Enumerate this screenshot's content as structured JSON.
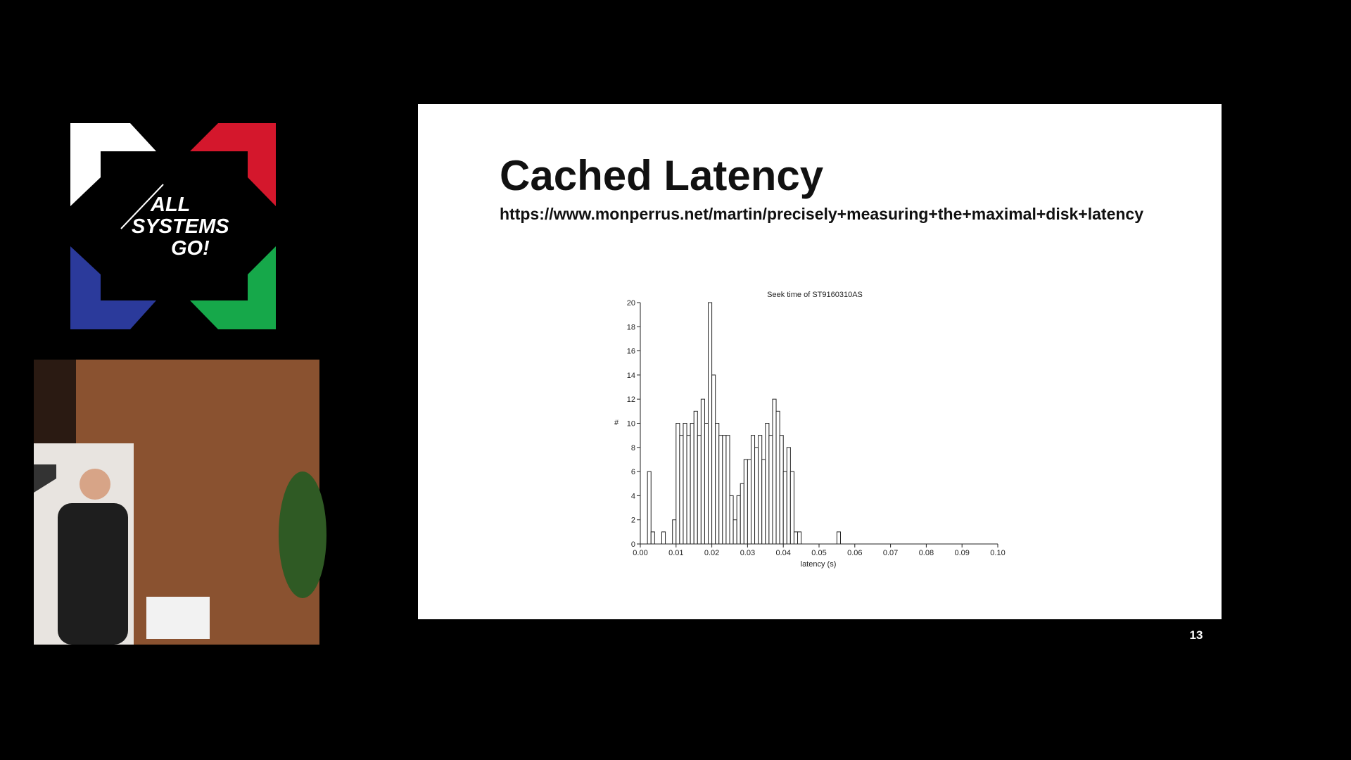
{
  "logo": {
    "lines": [
      "ALL",
      "SYSTEMS",
      "GO!"
    ]
  },
  "slide": {
    "title": "Cached Latency",
    "url": "https://www.monperrus.net/martin/precisely+measuring+the+maximal+disk+latency",
    "page_number": "13"
  },
  "chart_data": {
    "type": "histogram",
    "title": "Seek time of ST9160310AS",
    "x_label": "latency (s)",
    "y_label": "#",
    "bins": [
      0,
      0.001,
      0.002,
      0.003,
      0.004,
      0.005,
      0.006,
      0.007,
      0.008,
      0.009,
      0.01,
      0.011,
      0.012,
      0.013,
      0.014,
      0.015,
      0.016,
      0.017,
      0.018,
      0.019,
      0.02,
      0.021,
      0.022,
      0.023,
      0.024,
      0.025,
      0.026,
      0.027,
      0.028,
      0.029,
      0.03,
      0.031,
      0.032,
      0.033,
      0.034,
      0.035,
      0.036,
      0.037,
      0.038,
      0.039,
      0.04,
      0.041,
      0.042,
      0.043,
      0.044,
      0.045,
      0.046,
      0.047,
      0.048,
      0.049,
      0.05,
      0.051,
      0.052,
      0.053,
      0.054,
      0.055,
      0.056
    ],
    "values": [
      0,
      0,
      6,
      1,
      0,
      0,
      1,
      0,
      0,
      2,
      10,
      9,
      10,
      9,
      10,
      11,
      9,
      12,
      10,
      20,
      14,
      10,
      9,
      9,
      9,
      4,
      2,
      4,
      5,
      7,
      7,
      9,
      8,
      9,
      7,
      10,
      9,
      12,
      11,
      9,
      6,
      8,
      6,
      1,
      1,
      0,
      0,
      0,
      0,
      0,
      0,
      0,
      0,
      0,
      0,
      1
    ],
    "color": "#ffffff",
    "xlim": [
      0,
      0.1
    ],
    "ylim": [
      0,
      20
    ],
    "xticks": [
      {
        "value": 0,
        "label": "0.00"
      },
      {
        "value": 0.01,
        "label": "0.01"
      },
      {
        "value": 0.02,
        "label": "0.02"
      },
      {
        "value": 0.03,
        "label": "0.03"
      },
      {
        "value": 0.04,
        "label": "0.04"
      },
      {
        "value": 0.05,
        "label": "0.05"
      },
      {
        "value": 0.06,
        "label": "0.06"
      },
      {
        "value": 0.07,
        "label": "0.07"
      },
      {
        "value": 0.08,
        "label": "0.08"
      },
      {
        "value": 0.09,
        "label": "0.09"
      },
      {
        "value": 0.1,
        "label": "0.10"
      }
    ],
    "yticks": [
      0,
      2,
      4,
      6,
      8,
      10,
      12,
      14,
      16,
      18,
      20
    ]
  }
}
